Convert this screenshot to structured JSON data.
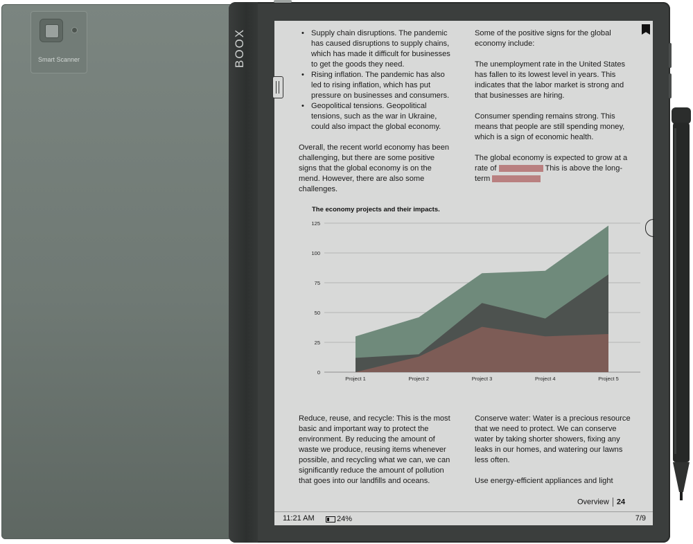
{
  "back_panel": {
    "scanner_label": "Smart Scanner"
  },
  "device": {
    "brand": "BOOX"
  },
  "reader": {
    "left_top_bullets": [
      "Supply chain disruptions. The pandemic has caused disruptions to supply chains, which has made it difficult for businesses to get the goods they need.",
      "Rising inflation. The pandemic has also led to rising inflation, which has put pressure on businesses and consumers.",
      "Geopolitical tensions. Geopolitical tensions, such as the war in Ukraine, could also impact the global economy."
    ],
    "left_top_paragraph": "Overall, the recent world economy has been challenging, but there are some positive signs that the global economy is on the mend. However, there are also some challenges.",
    "right_top_intro": "Some of the positive signs for the global economy include:",
    "right_top_p1": "The unemployment rate in the United States has fallen to its lowest level in years. This indicates that the labor market is strong and that businesses are hiring.",
    "right_top_p2": "Consumer spending remains strong. This means that people are still spending money, which is a sign of economic health.",
    "right_top_p3_a": "The global economy is expected to grow at a rate of",
    "right_top_p3_b": "This is above the long-term",
    "left_bottom_paragraph": "Reduce, reuse, and recycle: This is the most basic and important way to protect the environment. By reducing the amount of waste we produce, reusing items whenever possible, and recycling what we can, we can significantly reduce the amount of pollution that goes into our landfills and oceans.",
    "right_bottom_p1": "Conserve water: Water is a precious resource that we need to protect. We can conserve water by taking shorter showers, fixing any leaks in our homes, and watering our lawns less often.",
    "right_bottom_p2": "Use energy-efficient appliances and light",
    "footer_section": "Overview",
    "footer_page": "24"
  },
  "status": {
    "time": "11:21 AM",
    "battery": "24%",
    "page_indicator": "7/9"
  },
  "chart_data": {
    "type": "area",
    "title": "The economy projects and their impacts.",
    "categories": [
      "Project 1",
      "Project 2",
      "Project 3",
      "Project 4",
      "Project 5"
    ],
    "ylim": [
      0,
      125
    ],
    "yticks": [
      0,
      25,
      50,
      75,
      100,
      125
    ],
    "grid": true,
    "series": [
      {
        "values": [
          30,
          46,
          83,
          85,
          123
        ],
        "color": "#6f8a7b"
      },
      {
        "values": [
          12,
          15,
          58,
          45,
          82
        ],
        "color": "#4d524f"
      },
      {
        "values": [
          0,
          13,
          38,
          30,
          32
        ],
        "color": "#7d5c56"
      }
    ]
  },
  "colors": {
    "highlight": "#b98080",
    "screen": "#d8d9d8",
    "device_body": "#3b3e3d",
    "back_cover": "#6f7974"
  },
  "icons": {
    "bookmark": "bookmark-icon",
    "battery": "battery-icon",
    "menu_handle": "handle-icon",
    "camera": "camera-icon"
  }
}
